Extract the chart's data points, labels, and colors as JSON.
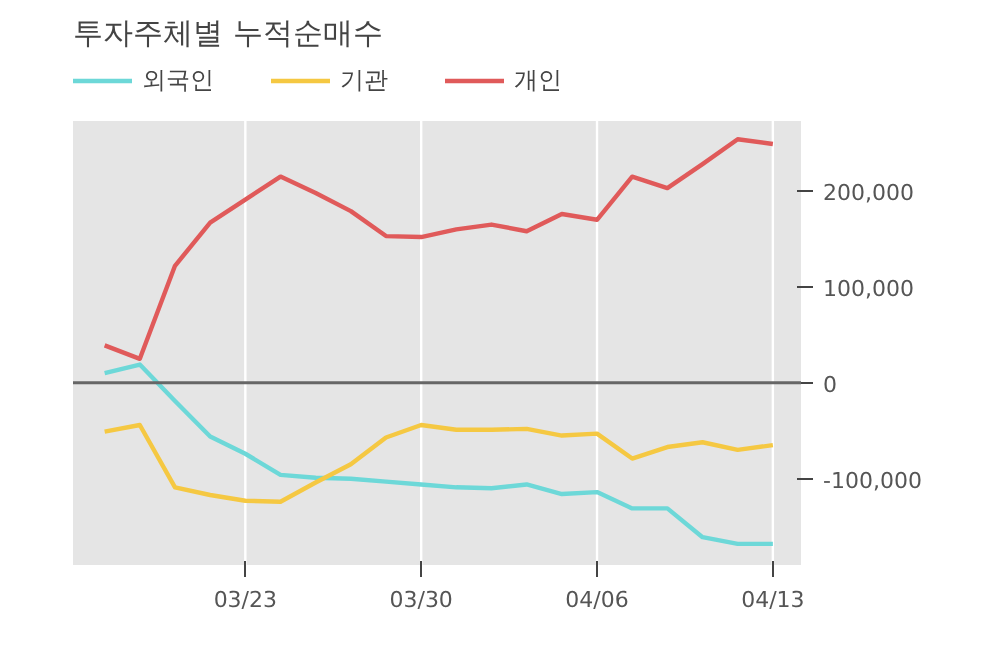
{
  "chart_data": {
    "type": "line",
    "title": "투자주체별 누적순매수",
    "categories": [
      null,
      null,
      null,
      null,
      "03/23",
      null,
      null,
      null,
      null,
      "03/30",
      null,
      null,
      null,
      null,
      "04/06",
      null,
      null,
      null,
      null,
      "04/13"
    ],
    "series": [
      {
        "name": "외국인",
        "color": "#6dd8d8",
        "values": [
          10000,
          19000,
          -19000,
          -56000,
          -74000,
          -96000,
          -99000,
          -100000,
          -103000,
          -106000,
          -109000,
          -110000,
          -106000,
          -116000,
          -114000,
          -131000,
          -131000,
          -161000,
          -168000,
          -168000
        ]
      },
      {
        "name": "기관",
        "color": "#f5c842",
        "values": [
          -51000,
          -44000,
          -109000,
          -117000,
          -123000,
          -124000,
          -104000,
          -85000,
          -57000,
          -44000,
          -49000,
          -49000,
          -48000,
          -55000,
          -53000,
          -79000,
          -67000,
          -62000,
          -70000,
          -65000
        ]
      },
      {
        "name": "개인",
        "color": "#e05a5a",
        "values": [
          39000,
          25000,
          122000,
          167000,
          191000,
          215000,
          198000,
          179000,
          153000,
          152000,
          160000,
          165000,
          158000,
          176000,
          170000,
          215000,
          203000,
          228000,
          254000,
          249000
        ]
      }
    ],
    "ylim": [
      -190000,
      273000
    ],
    "yticks": [
      {
        "value": -100000,
        "label": "-100,000"
      },
      0,
      {
        "value": 100000,
        "label": "100,000"
      },
      {
        "value": 200000,
        "label": "200,000"
      }
    ],
    "ref_lines": [
      {
        "axis": "y",
        "value": 0,
        "color": "#666666"
      }
    ],
    "grid": true,
    "legend": "top left",
    "marker": "none",
    "line_style": "solid"
  }
}
